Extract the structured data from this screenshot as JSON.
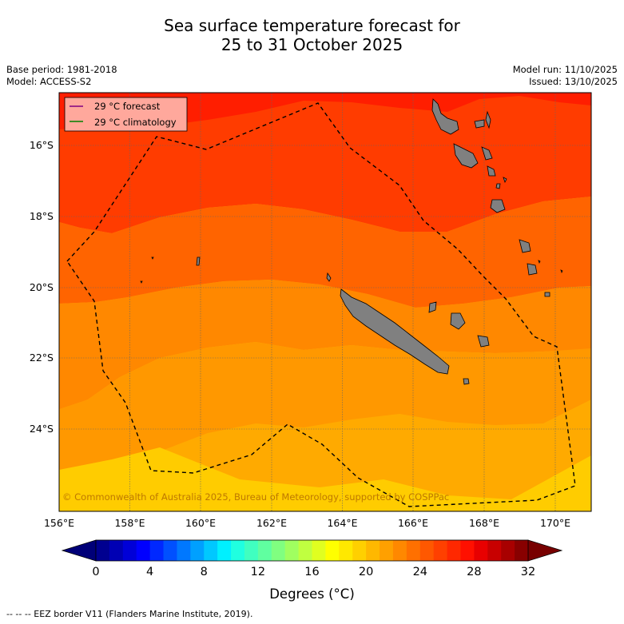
{
  "header": {
    "title_line1": "Sea surface temperature forecast for",
    "title_line2": "25 to 31 October 2025",
    "base_period": "Base period: 1981-2018",
    "model": "Model: ACCESS-S2",
    "model_run": "Model run: 11/10/2025",
    "issued": "Issued: 13/10/2025"
  },
  "legend": {
    "forecast": "29 °C  forecast",
    "climatology": "29 °C  climatology",
    "forecast_color": "#800080",
    "climatology_color": "#008000"
  },
  "map": {
    "lat_labels": [
      "16°S",
      "18°S",
      "20°S",
      "22°S",
      "24°S"
    ],
    "lon_labels": [
      "156°E",
      "158°E",
      "160°E",
      "162°E",
      "164°E",
      "166°E",
      "168°E",
      "170°E"
    ],
    "copyright": "© Commonwealth of Australia 2025, Bureau of Meteorology, supported by COSPPac",
    "land_color": "#808080"
  },
  "colorbar": {
    "ticks": [
      "0",
      "4",
      "8",
      "12",
      "16",
      "20",
      "24",
      "28",
      "32"
    ],
    "label": "Degrees (°C)",
    "colors": [
      "#000090",
      "#0000b4",
      "#0000d8",
      "#0000ff",
      "#0028ff",
      "#0050ff",
      "#0078ff",
      "#00a0ff",
      "#00c8ff",
      "#00f0ff",
      "#20ffe0",
      "#40ffc0",
      "#60ffa0",
      "#80ff80",
      "#a0ff60",
      "#c0ff40",
      "#e0ff20",
      "#ffff00",
      "#ffe800",
      "#ffd000",
      "#ffb800",
      "#ffa000",
      "#ff8800",
      "#ff7000",
      "#ff5800",
      "#ff4000",
      "#ff2800",
      "#ff1000",
      "#e80000",
      "#c80000",
      "#a80000",
      "#880000"
    ]
  },
  "footer": {
    "eez_note": "--  --  -- EEZ border V11 (Flanders Marine Institute, 2019)."
  }
}
